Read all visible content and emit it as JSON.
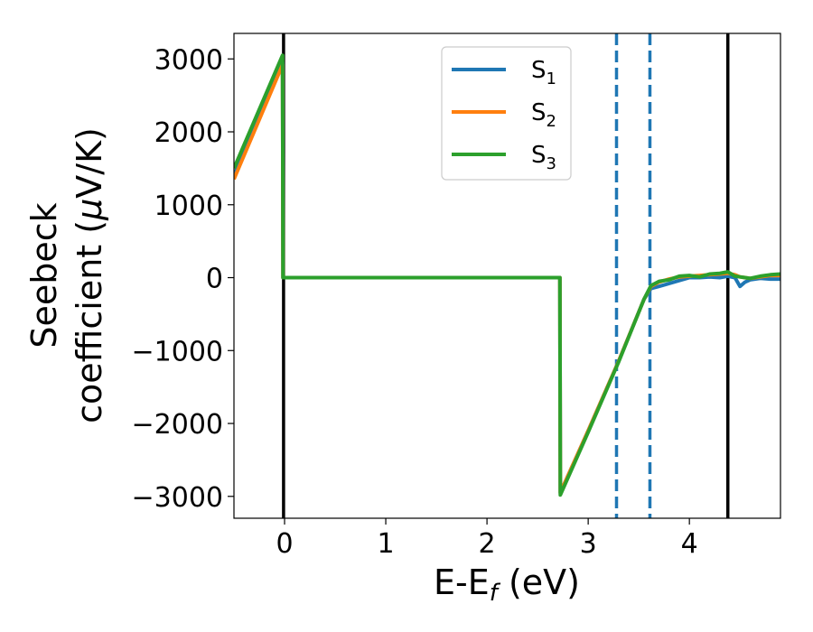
{
  "chart_data": {
    "type": "line",
    "xlabel": "E-E",
    "xlabel_sub": "f",
    "xlabel_unit": " (eV)",
    "ylabel_line1": "Seebeck",
    "ylabel_line2_prefix": "coefficient  (",
    "ylabel_mu": "μ",
    "ylabel_line2_suffix": "V/K)",
    "xlim": [
      -0.5,
      4.9
    ],
    "ylim": [
      -3300,
      3350
    ],
    "xticks": [
      0,
      1,
      2,
      3,
      4
    ],
    "xtick_labels": [
      "0",
      "1",
      "2",
      "3",
      "4"
    ],
    "yticks": [
      3000,
      2000,
      1000,
      0,
      -1000,
      -2000,
      -3000
    ],
    "ytick_labels": [
      "3000",
      "2000",
      "1000",
      "0",
      "−1000",
      "−2000",
      "−3000"
    ],
    "grid": false,
    "legend_position": "top-center",
    "series": [
      {
        "name": "S",
        "name_sub": "1",
        "color": "#1f77b4",
        "x": [
          -0.5,
          -0.02,
          -0.015,
          2.72,
          2.725,
          3.0,
          3.3,
          3.55,
          3.62,
          3.7,
          3.8,
          3.9,
          4.0,
          4.1,
          4.2,
          4.3,
          4.38,
          4.45,
          4.5,
          4.55,
          4.6,
          4.7,
          4.8,
          4.9
        ],
        "y": [
          1400,
          2950,
          0,
          0,
          -2950,
          -2100,
          -1150,
          -300,
          -150,
          -120,
          -80,
          -40,
          0,
          0,
          10,
          0,
          20,
          0,
          -120,
          -60,
          -30,
          -10,
          -20,
          -20
        ]
      },
      {
        "name": "S",
        "name_sub": "2",
        "color": "#ff7f0e",
        "x": [
          -0.5,
          -0.02,
          -0.015,
          2.72,
          2.725,
          3.0,
          3.3,
          3.55,
          3.62,
          3.7,
          3.8,
          3.9,
          4.0,
          4.1,
          4.2,
          4.3,
          4.38,
          4.45,
          4.5,
          4.55,
          4.6,
          4.7,
          4.8,
          4.9
        ],
        "y": [
          1350,
          2920,
          0,
          0,
          -2950,
          -2100,
          -1150,
          -300,
          -120,
          -60,
          -20,
          10,
          20,
          30,
          40,
          50,
          60,
          40,
          10,
          0,
          -10,
          10,
          30,
          30
        ]
      },
      {
        "name": "S",
        "name_sub": "3",
        "color": "#2ca02c",
        "x": [
          -0.5,
          -0.02,
          -0.015,
          2.72,
          2.725,
          3.0,
          3.3,
          3.55,
          3.62,
          3.7,
          3.8,
          3.9,
          4.0,
          4.1,
          4.2,
          4.3,
          4.38,
          4.45,
          4.5,
          4.55,
          4.6,
          4.7,
          4.8,
          4.9
        ],
        "y": [
          1500,
          3050,
          0,
          0,
          -2980,
          -2120,
          -1160,
          -300,
          -110,
          -50,
          -30,
          20,
          30,
          10,
          50,
          60,
          80,
          20,
          10,
          0,
          -10,
          20,
          40,
          50
        ]
      }
    ],
    "vlines": [
      {
        "x": -0.01,
        "style": "solid",
        "color": "#000000"
      },
      {
        "x": 4.38,
        "style": "solid",
        "color": "#000000"
      },
      {
        "x": 3.28,
        "style": "dashed",
        "color": "#1f77b4"
      },
      {
        "x": 3.61,
        "style": "dashed",
        "color": "#1f77b4"
      }
    ]
  }
}
